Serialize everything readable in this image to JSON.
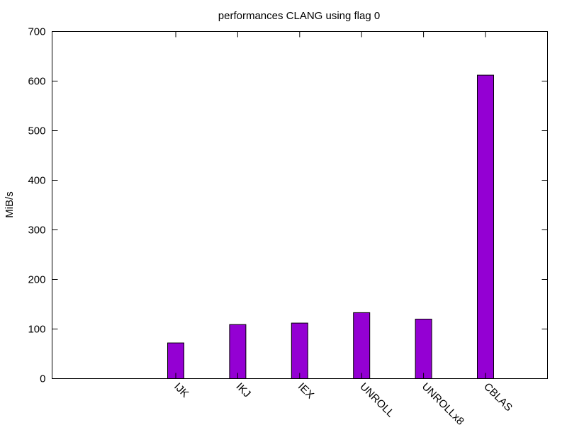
{
  "chart_data": {
    "type": "bar",
    "title": "performances CLANG using flag 0",
    "xlabel": "",
    "ylabel": "MiB/s",
    "ylim": [
      0,
      700
    ],
    "yticks": [
      0,
      100,
      200,
      300,
      400,
      500,
      600,
      700
    ],
    "categories": [
      "IJK",
      "IKJ",
      "IEX",
      "UNROLL",
      "UNROLLx8",
      "CBLAS"
    ],
    "values": [
      72,
      109,
      112,
      133,
      120,
      612
    ],
    "grid": false,
    "legend": "none",
    "bar_color": "#9400d3"
  }
}
